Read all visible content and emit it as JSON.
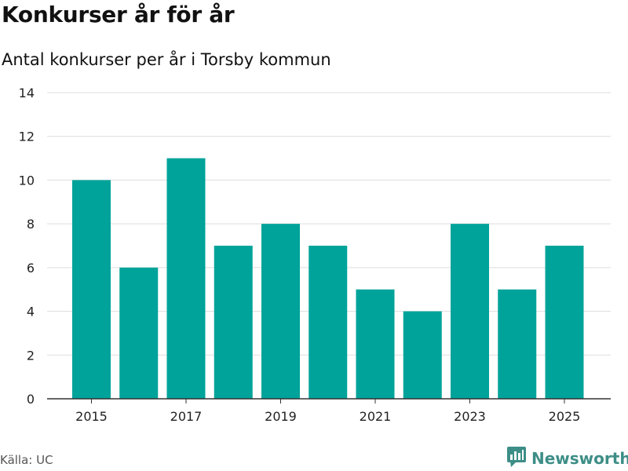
{
  "header": {
    "title": "Konkurser år för år",
    "subtitle": "Antal konkurser per år i Torsby kommun"
  },
  "footer": {
    "source": "Källa: UC",
    "brand": "Newsworthy",
    "brand_icon": "newsworthy-logo-icon"
  },
  "colors": {
    "bar": "#00a39a",
    "grid": "#dddddd",
    "axis": "#333333",
    "brand": "#3d8e87"
  },
  "chart_data": {
    "type": "bar",
    "title": "Konkurser år för år",
    "subtitle": "Antal konkurser per år i Torsby kommun",
    "xlabel": "",
    "ylabel": "",
    "categories": [
      "2015",
      "2016",
      "2017",
      "2018",
      "2019",
      "2020",
      "2021",
      "2022",
      "2023",
      "2024",
      "2025"
    ],
    "values": [
      10,
      6,
      11,
      7,
      8,
      7,
      5,
      4,
      8,
      5,
      7
    ],
    "x_tick_labels": [
      "2015",
      "2017",
      "2019",
      "2021",
      "2023",
      "2025"
    ],
    "y_ticks": [
      0,
      2,
      4,
      6,
      8,
      10,
      12,
      14
    ],
    "ylim": [
      0,
      14
    ],
    "grid": true,
    "legend": "none"
  }
}
